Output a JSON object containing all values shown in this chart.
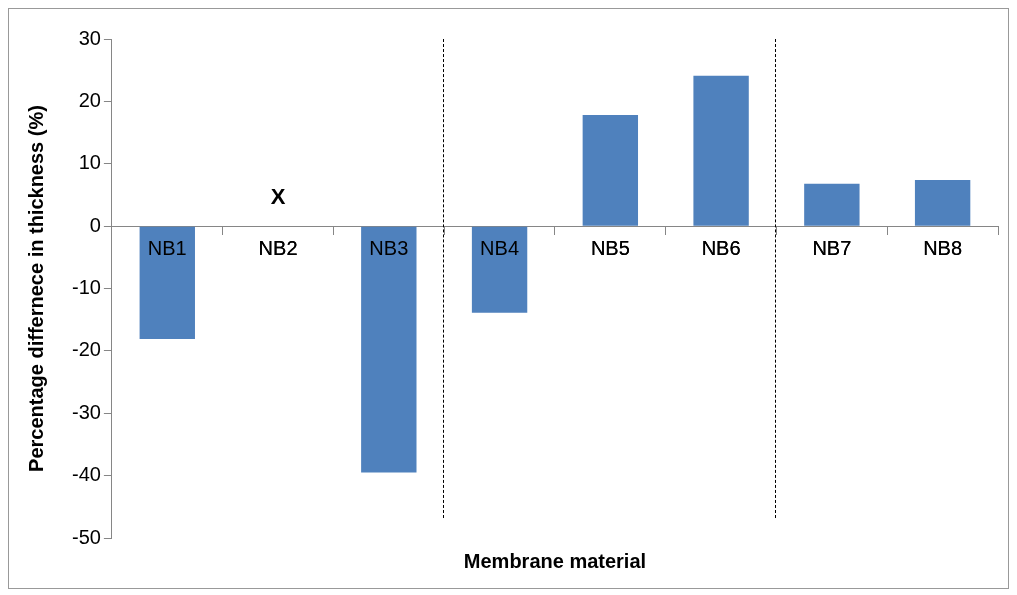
{
  "chart_data": {
    "type": "bar",
    "xlabel": "Membrane material",
    "ylabel": "Percentage differnece in thickness (%)",
    "categories": [
      "NB1",
      "NB2",
      "NB3",
      "NB4",
      "NB5",
      "NB6",
      "NB7",
      "NB8"
    ],
    "values": [
      -18.1,
      null,
      -39.5,
      -13.9,
      17.8,
      24.1,
      6.8,
      7.4
    ],
    "color": "#4f81bd",
    "ylim": [
      -50,
      30
    ],
    "yticks": [
      -50,
      -40,
      -30,
      -20,
      -10,
      0,
      10,
      20,
      30
    ],
    "grid": false,
    "legend": false,
    "annotations": [
      "X"
    ]
  }
}
